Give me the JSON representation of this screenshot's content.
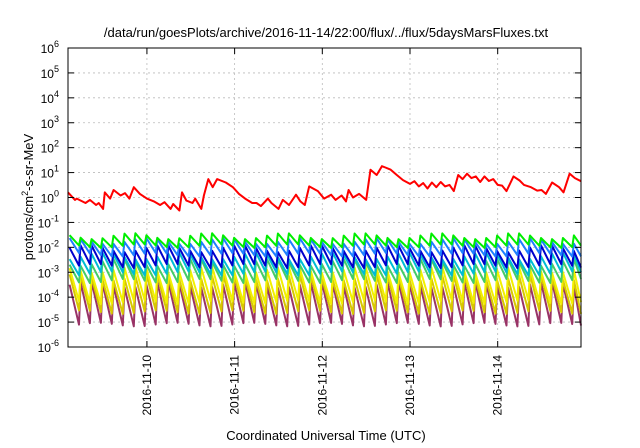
{
  "chart_data": {
    "type": "line",
    "title": "/data/run/goesPlots/archive/2016-11-14/22:00/flux/../flux/5daysMarsFluxes.txt",
    "xlabel": "Coordinated Universal Time (UTC)",
    "ylabel": {
      "pre": "protons/cm",
      "sup": "2",
      "post": "-s-sr-MeV"
    },
    "yscale": "log",
    "ylim_exp": [
      -6,
      6
    ],
    "y_tick_exponents": [
      -6,
      -5,
      -4,
      -3,
      -2,
      -1,
      0,
      1,
      2,
      3,
      4,
      5,
      6
    ],
    "y_tick_base": "10",
    "grid": true,
    "x_range_days": [
      9.1,
      14.95
    ],
    "x_tick_labels": [
      "2016-11-10",
      "2016-11-11",
      "2016-11-12",
      "2016-11-13",
      "2016-11-14"
    ],
    "x_tick_days": [
      10,
      11,
      12,
      13,
      14
    ],
    "sawtooth_period_days": 0.125,
    "main_series": {
      "color": "#ff0000",
      "points": [
        [
          9.1,
          1.6
        ],
        [
          9.18,
          0.8
        ],
        [
          9.2,
          0.9
        ],
        [
          9.3,
          0.6
        ],
        [
          9.35,
          0.8
        ],
        [
          9.42,
          0.5
        ],
        [
          9.45,
          0.6
        ],
        [
          9.5,
          0.35
        ],
        [
          9.52,
          1.6
        ],
        [
          9.58,
          0.9
        ],
        [
          9.62,
          2.0
        ],
        [
          9.7,
          1.2
        ],
        [
          9.75,
          1.5
        ],
        [
          9.8,
          0.9
        ],
        [
          9.85,
          2.6
        ],
        [
          9.92,
          1.4
        ],
        [
          10.0,
          0.9
        ],
        [
          10.08,
          0.7
        ],
        [
          10.15,
          0.5
        ],
        [
          10.2,
          0.65
        ],
        [
          10.27,
          0.35
        ],
        [
          10.3,
          0.55
        ],
        [
          10.37,
          0.3
        ],
        [
          10.4,
          1.6
        ],
        [
          10.45,
          0.75
        ],
        [
          10.52,
          0.6
        ],
        [
          10.55,
          0.9
        ],
        [
          10.62,
          0.35
        ],
        [
          10.65,
          1.2
        ],
        [
          10.7,
          5.5
        ],
        [
          10.75,
          2.6
        ],
        [
          10.8,
          5.5
        ],
        [
          10.9,
          4.0
        ],
        [
          10.98,
          2.6
        ],
        [
          11.05,
          1.4
        ],
        [
          11.12,
          0.9
        ],
        [
          11.2,
          0.6
        ],
        [
          11.25,
          0.6
        ],
        [
          11.3,
          0.45
        ],
        [
          11.38,
          0.9
        ],
        [
          11.42,
          0.6
        ],
        [
          11.5,
          0.35
        ],
        [
          11.55,
          0.8
        ],
        [
          11.62,
          0.5
        ],
        [
          11.7,
          1.3
        ],
        [
          11.75,
          0.7
        ],
        [
          11.8,
          0.5
        ],
        [
          11.85,
          2.8
        ],
        [
          11.95,
          1.8
        ],
        [
          12.02,
          0.9
        ],
        [
          12.1,
          1.3
        ],
        [
          12.15,
          0.8
        ],
        [
          12.22,
          1.2
        ],
        [
          12.27,
          0.7
        ],
        [
          12.3,
          2.0
        ],
        [
          12.35,
          1.0
        ],
        [
          12.42,
          1.4
        ],
        [
          12.5,
          0.8
        ],
        [
          12.55,
          13.0
        ],
        [
          12.62,
          8.0
        ],
        [
          12.68,
          18.0
        ],
        [
          12.72,
          16.0
        ],
        [
          12.78,
          13.0
        ],
        [
          12.85,
          8.0
        ],
        [
          12.92,
          5.0
        ],
        [
          13.0,
          3.5
        ],
        [
          13.05,
          4.5
        ],
        [
          13.1,
          2.8
        ],
        [
          13.15,
          3.8
        ],
        [
          13.2,
          2.3
        ],
        [
          13.25,
          4.0
        ],
        [
          13.3,
          2.6
        ],
        [
          13.35,
          4.2
        ],
        [
          13.4,
          2.8
        ],
        [
          13.45,
          3.2
        ],
        [
          13.5,
          1.8
        ],
        [
          13.55,
          8.0
        ],
        [
          13.6,
          5.5
        ],
        [
          13.65,
          9.0
        ],
        [
          13.7,
          6.0
        ],
        [
          13.75,
          7.0
        ],
        [
          13.8,
          4.2
        ],
        [
          13.85,
          7.0
        ],
        [
          13.9,
          4.6
        ],
        [
          13.95,
          5.5
        ],
        [
          14.0,
          3.2
        ],
        [
          14.05,
          3.0
        ],
        [
          14.1,
          1.8
        ],
        [
          14.18,
          7.0
        ],
        [
          14.25,
          4.8
        ],
        [
          14.3,
          3.2
        ],
        [
          14.38,
          2.6
        ],
        [
          14.45,
          1.9
        ],
        [
          14.5,
          2.0
        ],
        [
          14.55,
          1.4
        ],
        [
          14.62,
          4.0
        ],
        [
          14.7,
          2.6
        ],
        [
          14.75,
          1.6
        ],
        [
          14.82,
          9.0
        ],
        [
          14.88,
          6.0
        ],
        [
          14.95,
          4.5
        ]
      ]
    },
    "bundle_series": [
      {
        "color": "#00ee00",
        "low_exp": -1.95,
        "high_exp": -1.55,
        "wobble": 0.12
      },
      {
        "color": "#1e7fff",
        "low_exp": -2.3,
        "high_exp": -1.75,
        "wobble": 0.12
      },
      {
        "color": "#0000cc",
        "low_exp": -2.75,
        "high_exp": -2.05,
        "wobble": 0.14
      },
      {
        "color": "#00bcd4",
        "low_exp": -3.05,
        "high_exp": -2.35,
        "wobble": 0.14
      },
      {
        "color": "#44cc66",
        "low_exp": -3.35,
        "high_exp": -2.6,
        "wobble": 0.14
      },
      {
        "color": "#f2f000",
        "low_exp": -4.2,
        "high_exp": -2.9,
        "wobble": 0.12
      },
      {
        "color": "#d8c800",
        "low_exp": -4.6,
        "high_exp": -3.2,
        "wobble": 0.12
      },
      {
        "color": "#993366",
        "low_exp": -5.1,
        "high_exp": -3.5,
        "wobble": 0.12
      }
    ]
  }
}
